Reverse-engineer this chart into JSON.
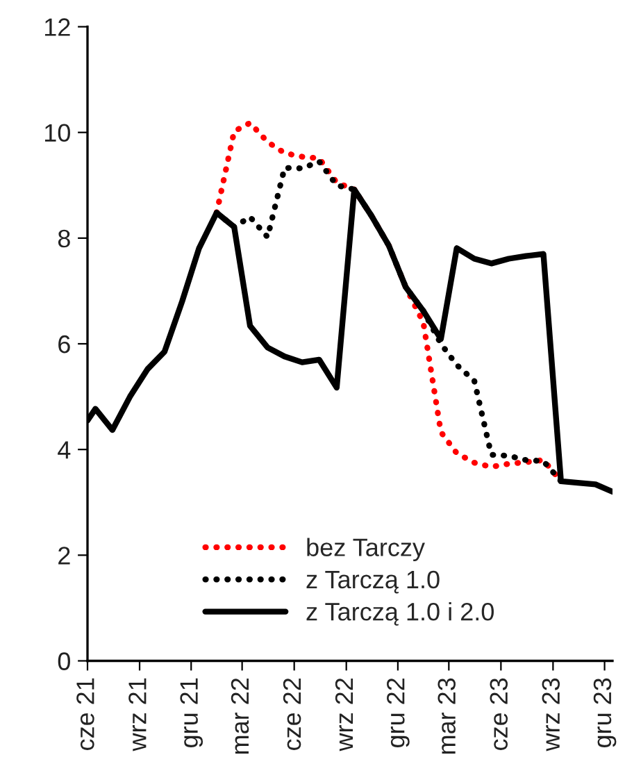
{
  "chart_data": {
    "type": "line",
    "x": [
      "2021-06-01",
      "2021-06-15",
      "2021-07-15",
      "2021-08-15",
      "2021-09-15",
      "2021-10-15",
      "2021-11-15",
      "2021-12-15",
      "2022-01-15",
      "2022-02-15",
      "2022-03-15",
      "2022-04-15",
      "2022-05-15",
      "2022-06-15",
      "2022-07-15",
      "2022-08-15",
      "2022-09-15",
      "2022-10-15",
      "2022-11-15",
      "2022-12-15",
      "2023-01-15",
      "2023-02-15",
      "2023-03-15",
      "2023-04-15",
      "2023-05-15",
      "2023-06-15",
      "2023-07-15",
      "2023-08-15",
      "2023-09-15",
      "2023-10-15",
      "2023-11-15",
      "2023-12-15"
    ],
    "series": [
      {
        "name": "bez Tarczy",
        "color": "#ff0000",
        "line_style": "dotted",
        "values": [
          null,
          null,
          null,
          null,
          null,
          null,
          null,
          null,
          8.48,
          10.02,
          10.18,
          9.82,
          9.61,
          9.54,
          9.51,
          9.05,
          8.92,
          8.43,
          7.86,
          7.07,
          6.4,
          4.33,
          3.93,
          3.75,
          3.67,
          3.73,
          3.76,
          3.8,
          3.4,
          null,
          null,
          null
        ]
      },
      {
        "name": "z Tarczą 1.0",
        "color": "#000000",
        "line_style": "dotted",
        "values": [
          null,
          null,
          null,
          null,
          null,
          null,
          null,
          null,
          8.48,
          8.21,
          8.4,
          8.02,
          9.33,
          9.32,
          9.45,
          9.0,
          8.92,
          8.43,
          7.86,
          7.07,
          6.62,
          6.0,
          5.6,
          5.3,
          3.9,
          3.88,
          3.8,
          3.78,
          3.4,
          null,
          null,
          null
        ]
      },
      {
        "name": "z Tarczą 1.0 i 2.0",
        "color": "#000000",
        "line_style": "solid",
        "values": [
          4.55,
          4.77,
          4.37,
          5.0,
          5.52,
          5.85,
          6.8,
          7.81,
          8.48,
          8.21,
          6.34,
          5.93,
          5.76,
          5.65,
          5.7,
          5.17,
          8.92,
          8.43,
          7.86,
          7.07,
          6.62,
          6.09,
          7.81,
          7.61,
          7.52,
          7.61,
          7.66,
          7.7,
          3.4,
          3.37,
          3.34,
          3.2
        ]
      }
    ],
    "xlim": [
      "2021-06-01",
      "2023-12-15"
    ],
    "xticks": [
      {
        "value": "2021-06-01",
        "label": "cze 21"
      },
      {
        "value": "2021-09-01",
        "label": "wrz 21"
      },
      {
        "value": "2021-12-01",
        "label": "gru 21"
      },
      {
        "value": "2022-03-01",
        "label": "mar 22"
      },
      {
        "value": "2022-06-01",
        "label": "cze 22"
      },
      {
        "value": "2022-09-01",
        "label": "wrz 22"
      },
      {
        "value": "2022-12-01",
        "label": "gru 22"
      },
      {
        "value": "2023-03-01",
        "label": "mar 23"
      },
      {
        "value": "2023-06-01",
        "label": "cze 23"
      },
      {
        "value": "2023-09-01",
        "label": "wrz 23"
      },
      {
        "value": "2023-12-01",
        "label": "gru 23"
      }
    ],
    "ylim": [
      0,
      12
    ],
    "yticks": [
      0,
      2,
      4,
      6,
      8,
      10,
      12
    ],
    "grid": false,
    "legend": "bottom"
  }
}
